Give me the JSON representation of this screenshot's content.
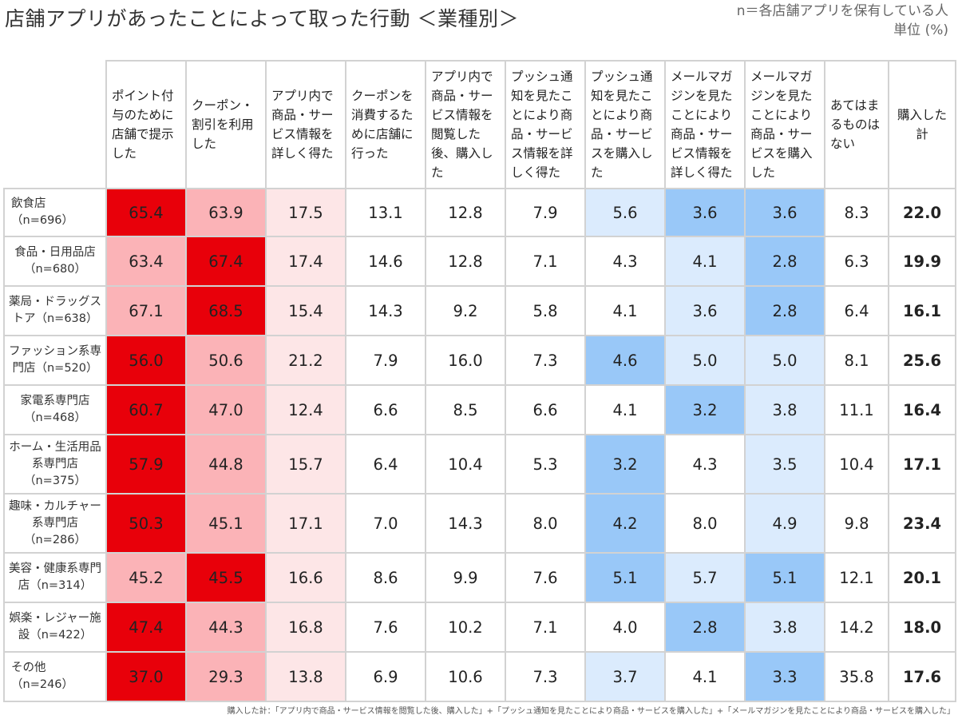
{
  "title": "店舗アプリがあったことによって取った行動 ＜業種別＞",
  "note_line1": "n＝各店舗アプリを保有している人",
  "note_line2": "単位 (%)",
  "footnote": "購入した計：「アプリ内で商品・サービス情報を閲覧した後、購入した」+「プッシュ通知を見たことにより商品・サービスを購入した」+「メールマガジンを見たことにより商品・サービスを購入した」",
  "colors": {
    "red_strong": "#e8000a",
    "red_medium": "#fbb3b7",
    "red_light": "#fde6e7",
    "blue_strong": "#99c8f8",
    "blue_light": "#dbebfd",
    "white": "#ffffff"
  },
  "chart_data": {
    "type": "table",
    "columns": [
      "ポイント付与のために店舗で提示した",
      "クーポン・割引を利用した",
      "アプリ内で商品・サービス情報を詳しく得た",
      "クーポンを消費するために店舗に行った",
      "アプリ内で商品・サービス情報を閲覧した後、購入した",
      "プッシュ通知を見たことにより商品・サービス情報を詳しく得た",
      "プッシュ通知を見たことにより商品・サービスを購入した",
      "メールマガジンを見たことにより商品・サービス情報を詳しく得た",
      "メールマガジンを見たことにより商品・サービスを購入した",
      "あてはまるものはない",
      "購入した計"
    ],
    "rows": [
      {
        "label": "飲食店（n=696）",
        "values": [
          65.4,
          63.9,
          17.5,
          13.1,
          12.8,
          7.9,
          5.6,
          3.6,
          3.6,
          8.3,
          22.0
        ],
        "shades": [
          "rs",
          "rm",
          "rl",
          "w",
          "w",
          "w",
          "bl",
          "bs",
          "bs",
          "w",
          "w"
        ]
      },
      {
        "label": "食品・日用品店（n=680）",
        "values": [
          63.4,
          67.4,
          17.4,
          14.6,
          12.8,
          7.1,
          4.3,
          4.1,
          2.8,
          6.3,
          19.9
        ],
        "shades": [
          "rm",
          "rs",
          "rl",
          "w",
          "w",
          "w",
          "w",
          "bl",
          "bs",
          "w",
          "w"
        ]
      },
      {
        "label": "薬局・ドラッグストア（n=638）",
        "values": [
          67.1,
          68.5,
          15.4,
          14.3,
          9.2,
          5.8,
          4.1,
          3.6,
          2.8,
          6.4,
          16.1
        ],
        "shades": [
          "rm",
          "rs",
          "rl",
          "w",
          "w",
          "w",
          "w",
          "bl",
          "bs",
          "w",
          "w"
        ]
      },
      {
        "label": "ファッション系専門店（n=520）",
        "values": [
          56.0,
          50.6,
          21.2,
          7.9,
          16.0,
          7.3,
          4.6,
          5.0,
          5.0,
          8.1,
          25.6
        ],
        "shades": [
          "rs",
          "rm",
          "rl",
          "w",
          "w",
          "w",
          "bs",
          "bl",
          "bl",
          "w",
          "w"
        ]
      },
      {
        "label": "家電系専門店（n=468）",
        "values": [
          60.7,
          47.0,
          12.4,
          6.6,
          8.5,
          6.6,
          4.1,
          3.2,
          3.8,
          11.1,
          16.4
        ],
        "shades": [
          "rs",
          "rm",
          "rl",
          "w",
          "w",
          "w",
          "w",
          "bs",
          "bl",
          "w",
          "w"
        ]
      },
      {
        "label": "ホーム・生活用品系専門店（n=375）",
        "values": [
          57.9,
          44.8,
          15.7,
          6.4,
          10.4,
          5.3,
          3.2,
          4.3,
          3.5,
          10.4,
          17.1
        ],
        "shades": [
          "rs",
          "rm",
          "rl",
          "w",
          "w",
          "w",
          "bs",
          "w",
          "bl",
          "w",
          "w"
        ]
      },
      {
        "label": "趣味・カルチャー系専門店（n=286）",
        "values": [
          50.3,
          45.1,
          17.1,
          7.0,
          14.3,
          8.0,
          4.2,
          8.0,
          4.9,
          9.8,
          23.4
        ],
        "shades": [
          "rs",
          "rm",
          "rl",
          "w",
          "w",
          "w",
          "bs",
          "w",
          "bl",
          "w",
          "w"
        ]
      },
      {
        "label": "美容・健康系専門店（n=314）",
        "values": [
          45.2,
          45.5,
          16.6,
          8.6,
          9.9,
          7.6,
          5.1,
          5.7,
          5.1,
          12.1,
          20.1
        ],
        "shades": [
          "rm",
          "rs",
          "rl",
          "w",
          "w",
          "w",
          "bs",
          "bl",
          "bs",
          "w",
          "w"
        ]
      },
      {
        "label": "娯楽・レジャー施設（n=422）",
        "values": [
          47.4,
          44.3,
          16.8,
          7.6,
          10.2,
          7.1,
          4.0,
          2.8,
          3.8,
          14.2,
          18.0
        ],
        "shades": [
          "rs",
          "rm",
          "rl",
          "w",
          "w",
          "w",
          "w",
          "bs",
          "bl",
          "w",
          "w"
        ]
      },
      {
        "label": "その他（n=246）",
        "values": [
          37.0,
          29.3,
          13.8,
          6.9,
          10.6,
          7.3,
          3.7,
          4.1,
          3.3,
          35.8,
          17.6
        ],
        "shades": [
          "rs",
          "rm",
          "rl",
          "w",
          "w",
          "w",
          "bl",
          "w",
          "bs",
          "w",
          "w"
        ]
      }
    ]
  }
}
